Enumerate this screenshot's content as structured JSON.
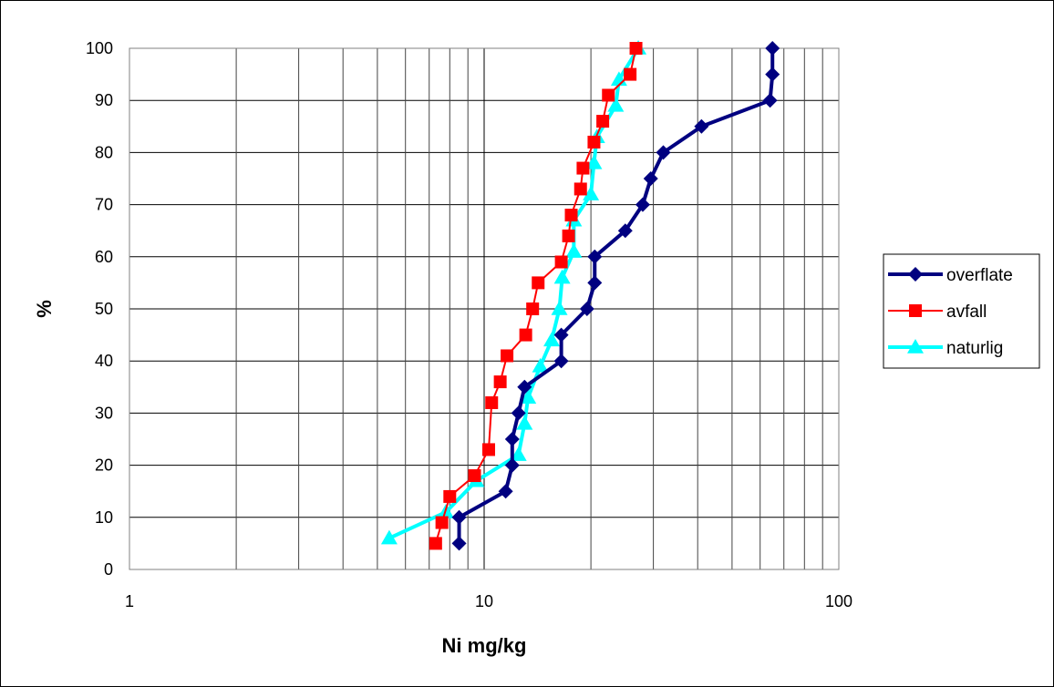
{
  "chart_data": {
    "type": "line",
    "title": "",
    "xlabel": "Ni mg/kg",
    "ylabel": "%",
    "x_scale": "log",
    "xlim": [
      1,
      100
    ],
    "ylim": [
      0,
      100
    ],
    "x_ticks": [
      1,
      10,
      100
    ],
    "y_ticks": [
      0,
      10,
      20,
      30,
      40,
      50,
      60,
      70,
      80,
      90,
      100
    ],
    "grid": true,
    "legend_position": "right",
    "series": [
      {
        "name": "overflate",
        "color": "#000080",
        "marker": "diamond",
        "points": [
          [
            8.5,
            5
          ],
          [
            8.5,
            10
          ],
          [
            11.5,
            15
          ],
          [
            12,
            20
          ],
          [
            12,
            25
          ],
          [
            12.5,
            30
          ],
          [
            13,
            35
          ],
          [
            16.5,
            40
          ],
          [
            16.5,
            45
          ],
          [
            19.5,
            50
          ],
          [
            20.5,
            55
          ],
          [
            20.5,
            60
          ],
          [
            25,
            65
          ],
          [
            28,
            70
          ],
          [
            29.5,
            75
          ],
          [
            32,
            80
          ],
          [
            41,
            85
          ],
          [
            64,
            90
          ],
          [
            65,
            95
          ],
          [
            65,
            100
          ]
        ]
      },
      {
        "name": "avfall",
        "color": "#ff0000",
        "marker": "square",
        "points": [
          [
            7.3,
            5
          ],
          [
            7.6,
            9
          ],
          [
            8.0,
            14
          ],
          [
            9.4,
            18
          ],
          [
            10.3,
            23
          ],
          [
            10.5,
            32
          ],
          [
            11.1,
            36
          ],
          [
            11.6,
            41
          ],
          [
            13.1,
            45
          ],
          [
            13.7,
            50
          ],
          [
            14.2,
            55
          ],
          [
            16.5,
            59
          ],
          [
            17.3,
            64
          ],
          [
            17.6,
            68
          ],
          [
            18.7,
            73
          ],
          [
            19.0,
            77
          ],
          [
            20.4,
            82
          ],
          [
            21.6,
            86
          ],
          [
            22.4,
            91
          ],
          [
            25.8,
            95
          ],
          [
            26.8,
            100
          ]
        ]
      },
      {
        "name": "naturlig",
        "color": "#00ffff",
        "marker": "triangle",
        "points": [
          [
            5.4,
            6
          ],
          [
            7.8,
            11
          ],
          [
            9.5,
            17
          ],
          [
            12.5,
            22
          ],
          [
            13.0,
            28
          ],
          [
            13.3,
            33
          ],
          [
            14.4,
            39
          ],
          [
            15.5,
            44
          ],
          [
            16.3,
            50
          ],
          [
            16.6,
            56
          ],
          [
            17.9,
            61
          ],
          [
            17.9,
            67
          ],
          [
            20.0,
            72
          ],
          [
            20.4,
            78
          ],
          [
            20.8,
            83
          ],
          [
            23.5,
            89
          ],
          [
            24.0,
            94
          ],
          [
            27.2,
            100
          ]
        ]
      }
    ]
  }
}
